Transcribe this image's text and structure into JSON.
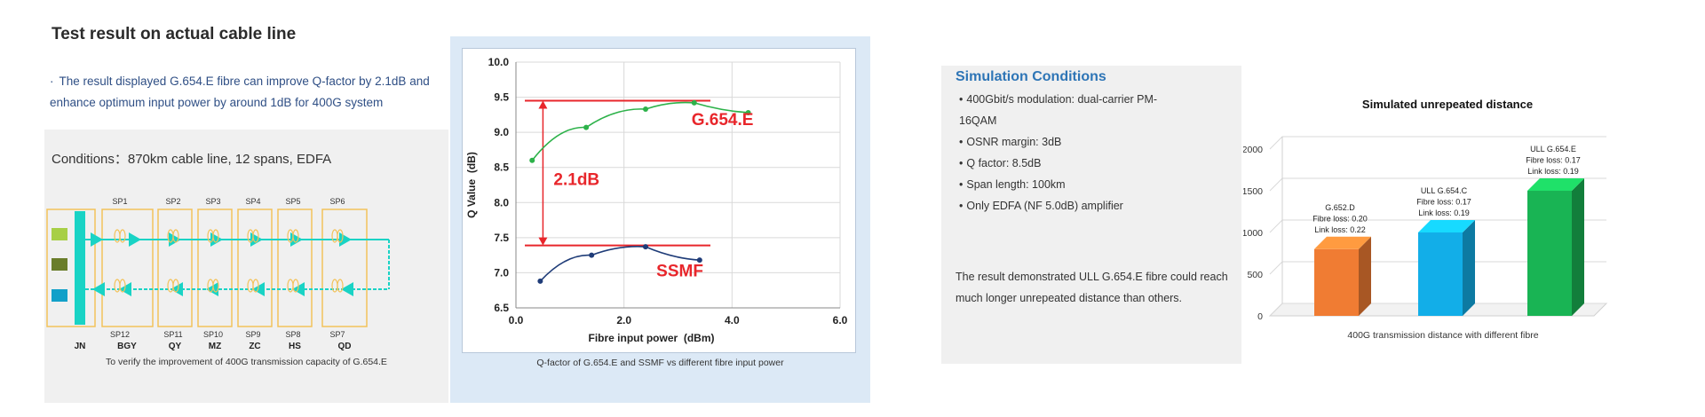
{
  "left": {
    "title": "Test result on actual cable line",
    "bullet": "·",
    "description": "The result displayed G.654.E fibre can improve Q-factor by 2.1dB and enhance optimum input power by around 1dB for 400G system",
    "conditions": "Conditions：870km cable line, 12 spans, EDFA",
    "caption": "To verify the improvement of 400G transmission capacity of G.654.E",
    "diagram": {
      "spans_top": [
        "SP1",
        "SP2",
        "SP3",
        "SP4",
        "SP5",
        "SP6"
      ],
      "spans_bottom": [
        "SP12",
        "SP11",
        "SP10",
        "SP9",
        "SP8",
        "SP7"
      ],
      "stations": [
        "JN",
        "BGY",
        "QY",
        "MZ",
        "ZC",
        "HS",
        "QD"
      ],
      "colors": {
        "box": "#f2c25a",
        "amp": "#19d3c5",
        "src1": "#a7cf46",
        "src2": "#6a7d2a",
        "src3": "#12a0c9"
      }
    }
  },
  "middle": {
    "caption": "Q-factor of G.654.E and SSMF vs different fibre input power"
  },
  "simulation": {
    "title": "Simulation Conditions",
    "items": [
      "400Gbit/s modulation: dual-carrier PM-16QAM",
      "OSNR margin: 3dB",
      "Q factor: 8.5dB",
      "Span length: 100km",
      "Only EDFA (NF 5.0dB) amplifier"
    ],
    "result": "The result demonstrated ULL G.654.E fibre could reach much longer  unrepeated distance than others."
  },
  "chart_data": [
    {
      "type": "line",
      "title": "",
      "xlabel": "Fibre input power  (dBm)",
      "ylabel": "Q Value  (dB)",
      "xlim": [
        0,
        6
      ],
      "ylim": [
        6.5,
        10
      ],
      "xticks": [
        "0.0",
        "2.0",
        "4.0",
        "6.0"
      ],
      "yticks": [
        "6.5",
        "7.0",
        "7.5",
        "8.0",
        "8.5",
        "9.0",
        "9.5",
        "10.0"
      ],
      "grid": true,
      "series": [
        {
          "name": "G.654.E",
          "color": "#2db24a",
          "x": [
            0.3,
            1.3,
            2.4,
            3.3,
            4.3
          ],
          "y": [
            8.6,
            9.07,
            9.33,
            9.42,
            9.28
          ]
        },
        {
          "name": "SSMF",
          "color": "#1f3c78",
          "x": [
            0.45,
            1.4,
            2.4,
            3.4
          ],
          "y": [
            6.88,
            7.25,
            7.37,
            7.18
          ]
        }
      ],
      "annotations": {
        "delta_label": "2.1dB",
        "upper_line_y": 9.45,
        "lower_line_y": 7.39,
        "line_color": "#e8262b"
      }
    },
    {
      "type": "bar",
      "title": "Simulated unrepeated distance",
      "xlabel": "400G transmission distance with different fibre",
      "ylabel": "",
      "ylim": [
        0,
        2000
      ],
      "yticks": [
        "0",
        "500",
        "1000",
        "1500",
        "2000"
      ],
      "categories": [
        "G.652.D",
        "ULL G.654.C",
        "ULL G.654.E"
      ],
      "values": [
        800,
        1000,
        1500
      ],
      "colors": [
        "#f07c33",
        "#12aee8",
        "#19b454"
      ],
      "bar_labels": [
        [
          "G.652.D",
          "Fibre loss: 0.20",
          "Link loss: 0.22"
        ],
        [
          "ULL G.654.C",
          "Fibre loss: 0.17",
          "Link loss: 0.19"
        ],
        [
          "ULL G.654.E",
          "Fibre loss: 0.17",
          "Link loss: 0.19"
        ]
      ]
    }
  ]
}
